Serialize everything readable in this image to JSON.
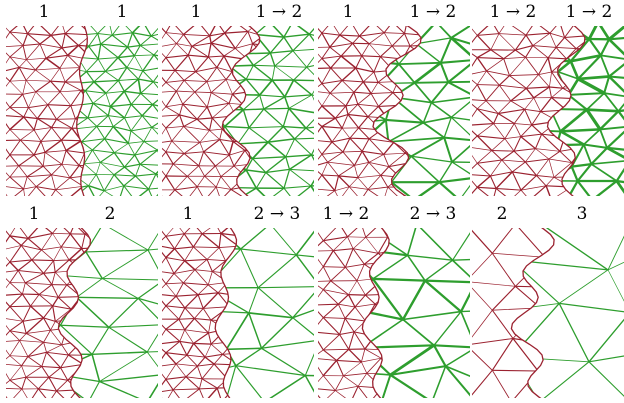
{
  "colors": {
    "left_region": "#9b2230",
    "right_region": "#2e9e2e",
    "background": "#ffffff"
  },
  "panels": [
    {
      "left": "1",
      "right": "1",
      "left_density": 14,
      "right_density": 14,
      "split": 0.5,
      "jag": 0.02,
      "weight": 1.0
    },
    {
      "left": "1",
      "right": "1 → 2",
      "left_density": 14,
      "right_density": 11,
      "split": 0.52,
      "jag": 0.07,
      "weight": 1.2
    },
    {
      "left": "1",
      "right": "1 → 2",
      "left_density": 14,
      "right_density": 8,
      "split": 0.52,
      "jag": 0.09,
      "weight": 1.6
    },
    {
      "left": "1 → 2",
      "right": "1 → 2",
      "left_density": 13,
      "right_density": 9,
      "split": 0.62,
      "jag": 0.07,
      "weight": 2.0
    },
    {
      "left": "1",
      "right": "2",
      "left_density": 14,
      "right_density": 6,
      "split": 0.45,
      "jag": 0.06,
      "weight": 1.1
    },
    {
      "left": "1",
      "right": "2 → 3",
      "left_density": 14,
      "right_density": 5,
      "split": 0.42,
      "jag": 0.04,
      "weight": 1.3
    },
    {
      "left": "1 → 2",
      "right": "2 → 3",
      "left_density": 12,
      "right_density": 5,
      "split": 0.38,
      "jag": 0.05,
      "weight": 1.7
    },
    {
      "left": "2",
      "right": "3",
      "left_density": 5,
      "right_density": 4,
      "split": 0.4,
      "jag": 0.08,
      "weight": 1.1
    }
  ]
}
